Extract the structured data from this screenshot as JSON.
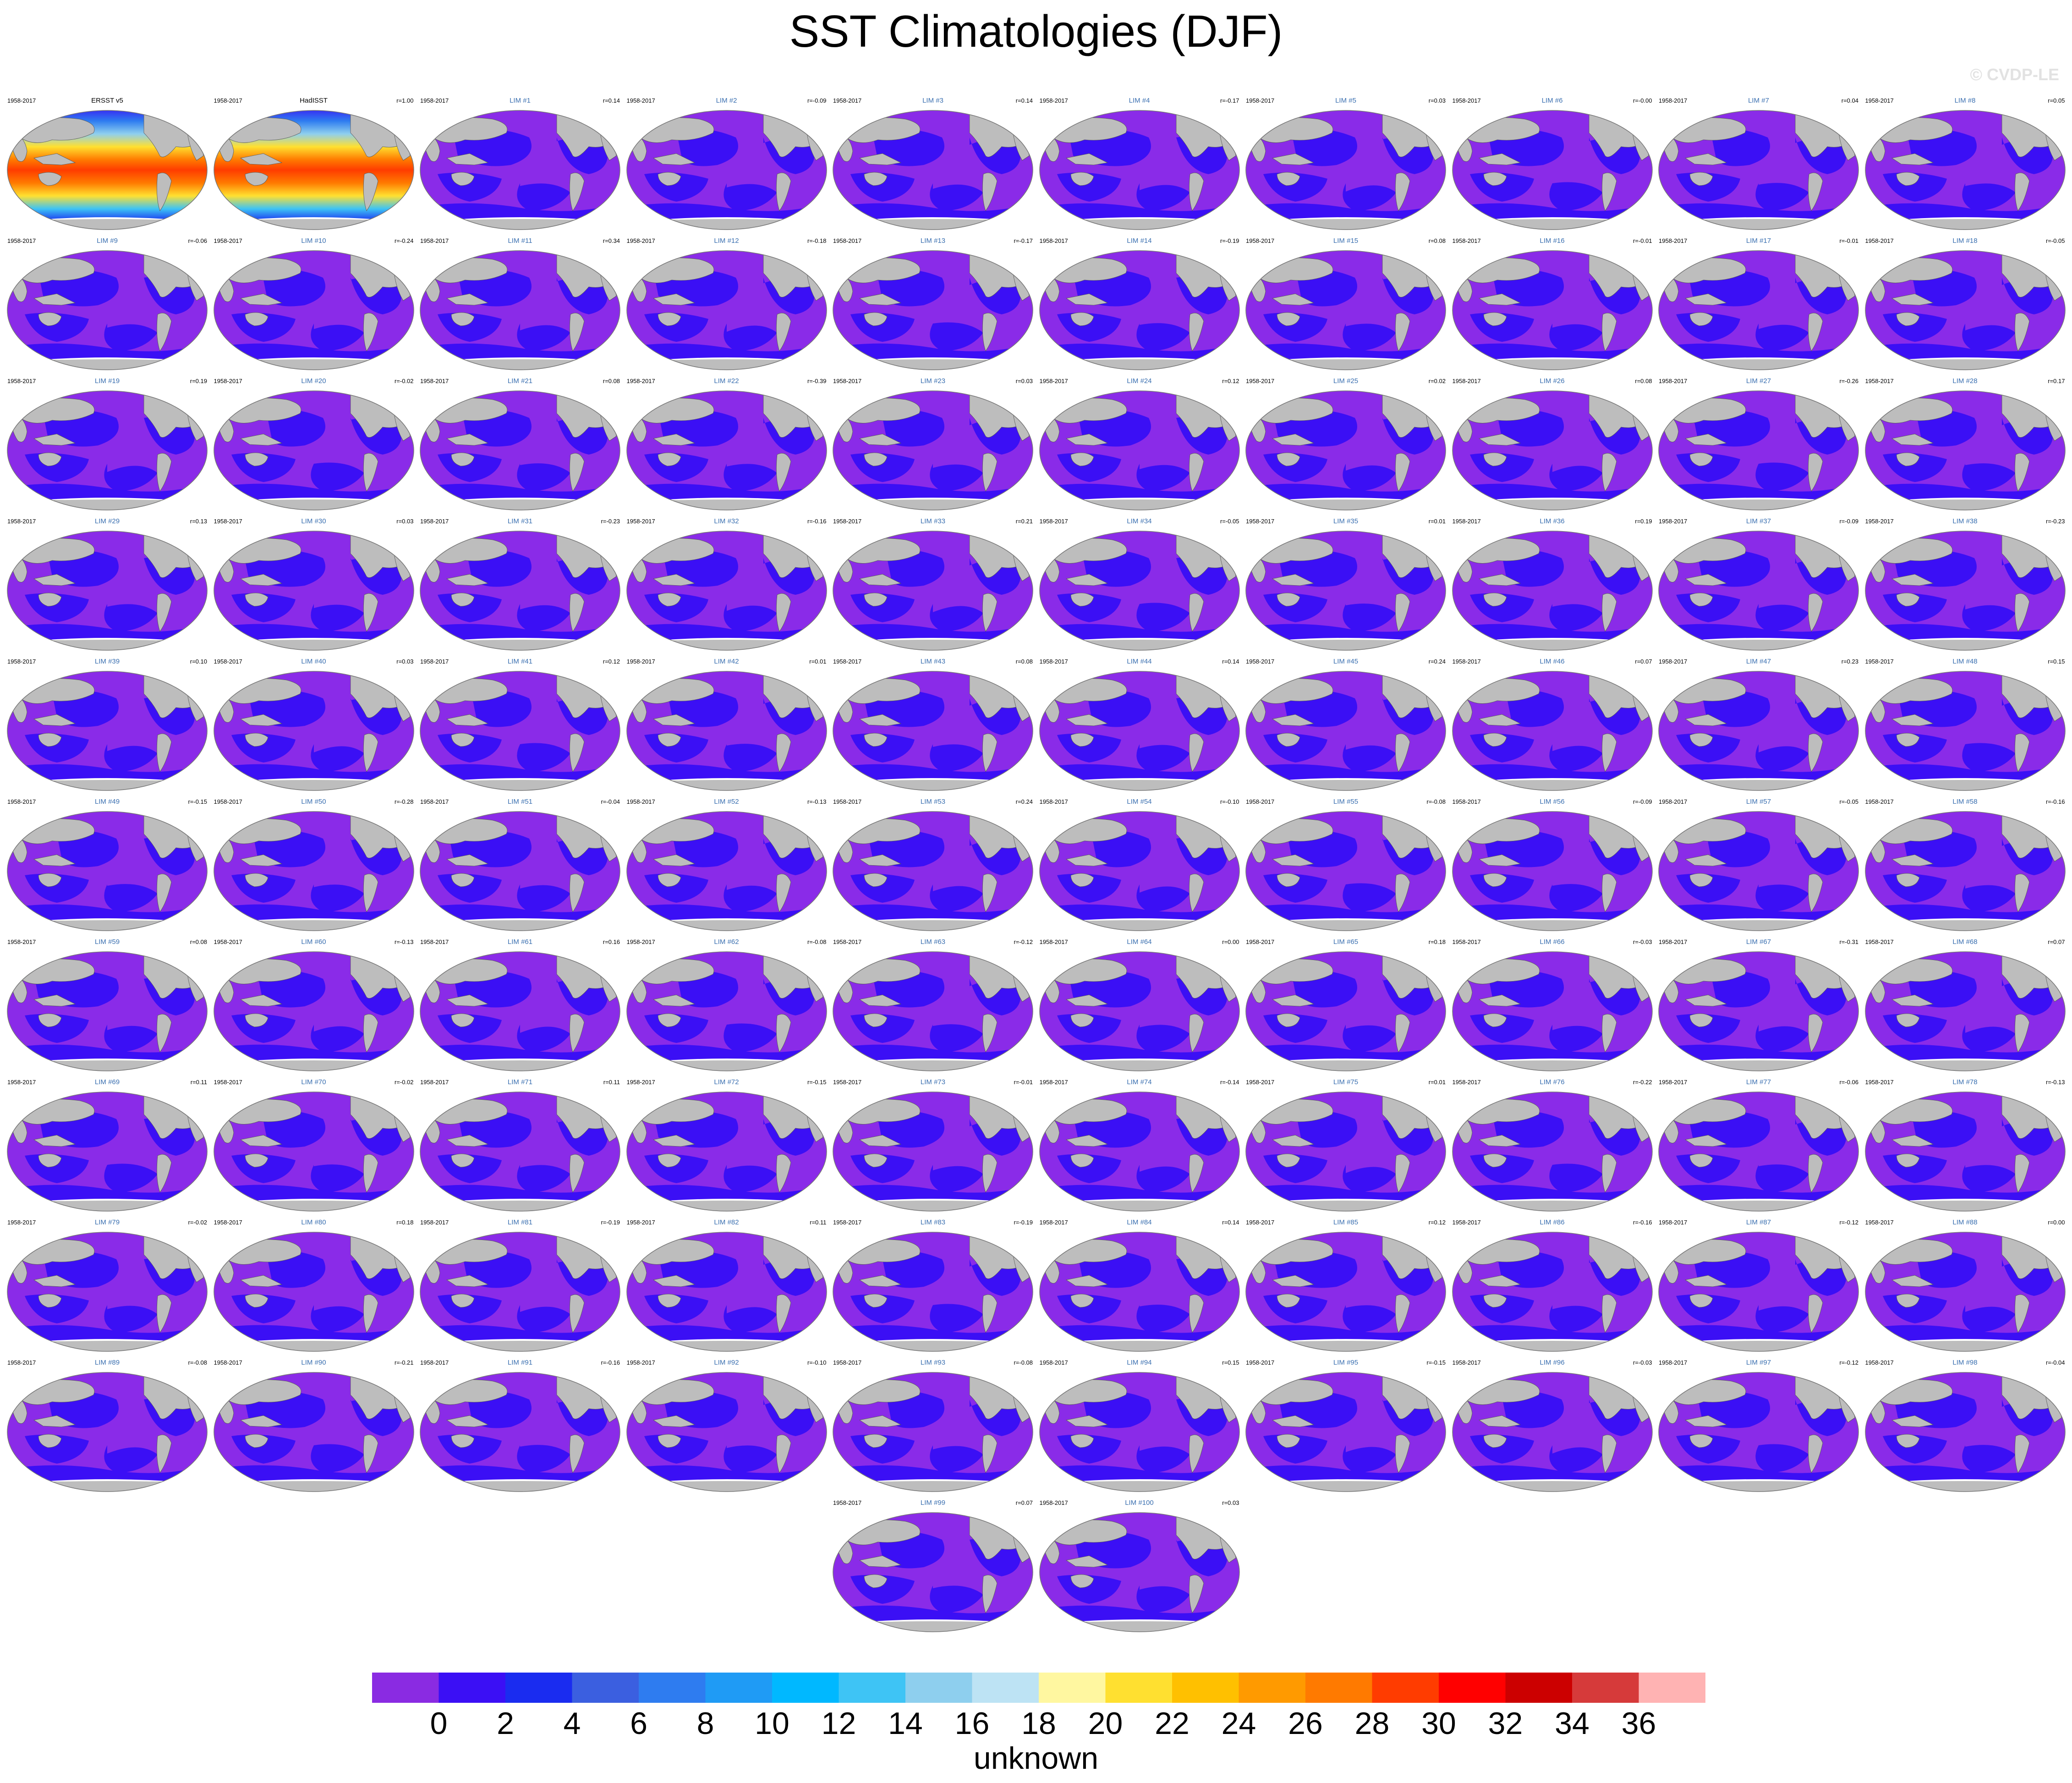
{
  "title": "SST Climatologies (DJF)",
  "watermark": "© CVDP-LE",
  "period": "1958-2017",
  "panels": [
    {
      "label": "ERSST v5",
      "r": "",
      "type": "obs"
    },
    {
      "label": "HadISST",
      "r": "r=1.00",
      "type": "obs"
    },
    {
      "label": "LIM #1",
      "r": "r=0.14",
      "type": "model"
    },
    {
      "label": "LIM #2",
      "r": "r=-0.09",
      "type": "model"
    },
    {
      "label": "LIM #3",
      "r": "r=0.14",
      "type": "model"
    },
    {
      "label": "LIM #4",
      "r": "r=-0.17",
      "type": "model"
    },
    {
      "label": "LIM #5",
      "r": "r=0.03",
      "type": "model"
    },
    {
      "label": "LIM #6",
      "r": "r=-0.00",
      "type": "model"
    },
    {
      "label": "LIM #7",
      "r": "r=0.04",
      "type": "model"
    },
    {
      "label": "LIM #8",
      "r": "r=0.05",
      "type": "model"
    },
    {
      "label": "LIM #9",
      "r": "r=-0.06",
      "type": "model"
    },
    {
      "label": "LIM #10",
      "r": "r=-0.24",
      "type": "model"
    },
    {
      "label": "LIM #11",
      "r": "r=0.34",
      "type": "model"
    },
    {
      "label": "LIM #12",
      "r": "r=-0.18",
      "type": "model"
    },
    {
      "label": "LIM #13",
      "r": "r=-0.17",
      "type": "model"
    },
    {
      "label": "LIM #14",
      "r": "r=-0.19",
      "type": "model"
    },
    {
      "label": "LIM #15",
      "r": "r=0.08",
      "type": "model"
    },
    {
      "label": "LIM #16",
      "r": "r=-0.01",
      "type": "model"
    },
    {
      "label": "LIM #17",
      "r": "r=-0.01",
      "type": "model"
    },
    {
      "label": "LIM #18",
      "r": "r=-0.05",
      "type": "model"
    },
    {
      "label": "LIM #19",
      "r": "r=0.19",
      "type": "model"
    },
    {
      "label": "LIM #20",
      "r": "r=-0.02",
      "type": "model"
    },
    {
      "label": "LIM #21",
      "r": "r=0.08",
      "type": "model"
    },
    {
      "label": "LIM #22",
      "r": "r=-0.39",
      "type": "model"
    },
    {
      "label": "LIM #23",
      "r": "r=0.03",
      "type": "model"
    },
    {
      "label": "LIM #24",
      "r": "r=0.12",
      "type": "model"
    },
    {
      "label": "LIM #25",
      "r": "r=0.02",
      "type": "model"
    },
    {
      "label": "LIM #26",
      "r": "r=0.08",
      "type": "model"
    },
    {
      "label": "LIM #27",
      "r": "r=-0.26",
      "type": "model"
    },
    {
      "label": "LIM #28",
      "r": "r=0.17",
      "type": "model"
    },
    {
      "label": "LIM #29",
      "r": "r=0.13",
      "type": "model"
    },
    {
      "label": "LIM #30",
      "r": "r=0.03",
      "type": "model"
    },
    {
      "label": "LIM #31",
      "r": "r=-0.23",
      "type": "model"
    },
    {
      "label": "LIM #32",
      "r": "r=-0.16",
      "type": "model"
    },
    {
      "label": "LIM #33",
      "r": "r=0.21",
      "type": "model"
    },
    {
      "label": "LIM #34",
      "r": "r=-0.05",
      "type": "model"
    },
    {
      "label": "LIM #35",
      "r": "r=0.01",
      "type": "model"
    },
    {
      "label": "LIM #36",
      "r": "r=0.19",
      "type": "model"
    },
    {
      "label": "LIM #37",
      "r": "r=-0.09",
      "type": "model"
    },
    {
      "label": "LIM #38",
      "r": "r=-0.23",
      "type": "model"
    },
    {
      "label": "LIM #39",
      "r": "r=0.10",
      "type": "model"
    },
    {
      "label": "LIM #40",
      "r": "r=0.03",
      "type": "model"
    },
    {
      "label": "LIM #41",
      "r": "r=0.12",
      "type": "model"
    },
    {
      "label": "LIM #42",
      "r": "r=0.01",
      "type": "model"
    },
    {
      "label": "LIM #43",
      "r": "r=0.08",
      "type": "model"
    },
    {
      "label": "LIM #44",
      "r": "r=0.14",
      "type": "model"
    },
    {
      "label": "LIM #45",
      "r": "r=0.24",
      "type": "model"
    },
    {
      "label": "LIM #46",
      "r": "r=0.07",
      "type": "model"
    },
    {
      "label": "LIM #47",
      "r": "r=0.23",
      "type": "model"
    },
    {
      "label": "LIM #48",
      "r": "r=0.15",
      "type": "model"
    },
    {
      "label": "LIM #49",
      "r": "r=-0.15",
      "type": "model"
    },
    {
      "label": "LIM #50",
      "r": "r=-0.28",
      "type": "model"
    },
    {
      "label": "LIM #51",
      "r": "r=-0.04",
      "type": "model"
    },
    {
      "label": "LIM #52",
      "r": "r=-0.13",
      "type": "model"
    },
    {
      "label": "LIM #53",
      "r": "r=0.24",
      "type": "model"
    },
    {
      "label": "LIM #54",
      "r": "r=-0.10",
      "type": "model"
    },
    {
      "label": "LIM #55",
      "r": "r=-0.08",
      "type": "model"
    },
    {
      "label": "LIM #56",
      "r": "r=-0.09",
      "type": "model"
    },
    {
      "label": "LIM #57",
      "r": "r=-0.05",
      "type": "model"
    },
    {
      "label": "LIM #58",
      "r": "r=-0.16",
      "type": "model"
    },
    {
      "label": "LIM #59",
      "r": "r=0.08",
      "type": "model"
    },
    {
      "label": "LIM #60",
      "r": "r=-0.13",
      "type": "model"
    },
    {
      "label": "LIM #61",
      "r": "r=0.16",
      "type": "model"
    },
    {
      "label": "LIM #62",
      "r": "r=-0.08",
      "type": "model"
    },
    {
      "label": "LIM #63",
      "r": "r=-0.12",
      "type": "model"
    },
    {
      "label": "LIM #64",
      "r": "r=0.00",
      "type": "model"
    },
    {
      "label": "LIM #65",
      "r": "r=0.18",
      "type": "model"
    },
    {
      "label": "LIM #66",
      "r": "r=-0.03",
      "type": "model"
    },
    {
      "label": "LIM #67",
      "r": "r=-0.31",
      "type": "model"
    },
    {
      "label": "LIM #68",
      "r": "r=0.07",
      "type": "model"
    },
    {
      "label": "LIM #69",
      "r": "r=0.11",
      "type": "model"
    },
    {
      "label": "LIM #70",
      "r": "r=-0.02",
      "type": "model"
    },
    {
      "label": "LIM #71",
      "r": "r=0.11",
      "type": "model"
    },
    {
      "label": "LIM #72",
      "r": "r=-0.15",
      "type": "model"
    },
    {
      "label": "LIM #73",
      "r": "r=-0.01",
      "type": "model"
    },
    {
      "label": "LIM #74",
      "r": "r=-0.14",
      "type": "model"
    },
    {
      "label": "LIM #75",
      "r": "r=0.01",
      "type": "model"
    },
    {
      "label": "LIM #76",
      "r": "r=-0.22",
      "type": "model"
    },
    {
      "label": "LIM #77",
      "r": "r=-0.06",
      "type": "model"
    },
    {
      "label": "LIM #78",
      "r": "r=-0.13",
      "type": "model"
    },
    {
      "label": "LIM #79",
      "r": "r=-0.02",
      "type": "model"
    },
    {
      "label": "LIM #80",
      "r": "r=0.18",
      "type": "model"
    },
    {
      "label": "LIM #81",
      "r": "r=-0.19",
      "type": "model"
    },
    {
      "label": "LIM #82",
      "r": "r=0.11",
      "type": "model"
    },
    {
      "label": "LIM #83",
      "r": "r=-0.19",
      "type": "model"
    },
    {
      "label": "LIM #84",
      "r": "r=0.14",
      "type": "model"
    },
    {
      "label": "LIM #85",
      "r": "r=0.12",
      "type": "model"
    },
    {
      "label": "LIM #86",
      "r": "r=-0.16",
      "type": "model"
    },
    {
      "label": "LIM #87",
      "r": "r=-0.12",
      "type": "model"
    },
    {
      "label": "LIM #88",
      "r": "r=0.00",
      "type": "model"
    },
    {
      "label": "LIM #89",
      "r": "r=-0.08",
      "type": "model"
    },
    {
      "label": "LIM #90",
      "r": "r=-0.21",
      "type": "model"
    },
    {
      "label": "LIM #91",
      "r": "r=-0.16",
      "type": "model"
    },
    {
      "label": "LIM #92",
      "r": "r=-0.10",
      "type": "model"
    },
    {
      "label": "LIM #93",
      "r": "r=-0.08",
      "type": "model"
    },
    {
      "label": "LIM #94",
      "r": "r=0.15",
      "type": "model"
    },
    {
      "label": "LIM #95",
      "r": "r=-0.15",
      "type": "model"
    },
    {
      "label": "LIM #96",
      "r": "r=-0.03",
      "type": "model"
    },
    {
      "label": "LIM #97",
      "r": "r=-0.12",
      "type": "model"
    },
    {
      "label": "LIM #98",
      "r": "r=-0.04",
      "type": "model"
    },
    {
      "label": "LIM #99",
      "r": "r=0.07",
      "type": "model"
    },
    {
      "label": "LIM #100",
      "r": "r=0.03",
      "type": "model"
    }
  ],
  "colors": {
    "land": "#bdbdbd",
    "ocean_dark": "#3b0ff5",
    "ocean_light": "#8a2be8",
    "antarctic_gap": "#ffffff"
  },
  "colorbar": {
    "colors": [
      "#8a2be2",
      "#3b0ff5",
      "#1a2cf0",
      "#3b5fe0",
      "#2e7cf0",
      "#1f9bf5",
      "#00b8ff",
      "#3ec4f5",
      "#8ecfee",
      "#bde3f4",
      "#fff7a0",
      "#ffe030",
      "#ffc000",
      "#ff9a00",
      "#ff7a00",
      "#ff3c00",
      "#ff0000",
      "#cc0000",
      "#d63a3a",
      "#ffb3b3"
    ],
    "tick_labels": [
      "0",
      "2",
      "4",
      "6",
      "8",
      "10",
      "12",
      "14",
      "16",
      "18",
      "20",
      "22",
      "24",
      "26",
      "28",
      "30",
      "32",
      "34",
      "36"
    ],
    "units": "unknown"
  }
}
